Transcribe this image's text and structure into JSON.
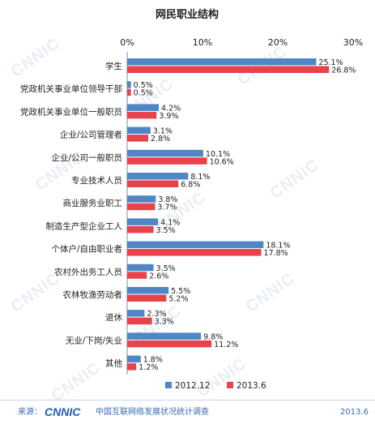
{
  "chart_data": {
    "type": "bar",
    "orientation": "horizontal",
    "title": "网民职业结构",
    "x_ticks": [
      "0%",
      "10%",
      "20%",
      "30%"
    ],
    "xlim": [
      0,
      30
    ],
    "unit": "%",
    "categories": [
      "学生",
      "党政机关事业单位领导干部",
      "党政机关事业单位一般职员",
      "企业/公司管理者",
      "企业/公司一般职员",
      "专业技术人员",
      "商业服务业职工",
      "制造生产型企业工人",
      "个体户/自由职业者",
      "农村外出务工人员",
      "农林牧渔劳动者",
      "退休",
      "无业/下岗/失业",
      "其他"
    ],
    "series": [
      {
        "name": "2012.12",
        "color": "#4f86c6",
        "values": [
          25.1,
          0.5,
          4.2,
          3.1,
          10.1,
          8.1,
          3.8,
          4.1,
          18.1,
          3.5,
          5.5,
          2.3,
          9.8,
          1.8
        ],
        "labels": [
          "25.1%",
          "0.5%",
          "4.2%",
          "3.1%",
          "10.1%",
          "8.1%",
          "3.8%",
          "4.1%",
          "18.1%",
          "3.5%",
          "5.5%",
          "2.3%",
          "9.8%",
          "1.8%"
        ]
      },
      {
        "name": "2013.6",
        "color": "#e8424a",
        "values": [
          26.8,
          0.5,
          3.9,
          2.8,
          10.6,
          6.8,
          3.7,
          3.5,
          17.8,
          2.6,
          5.2,
          3.3,
          11.2,
          1.2
        ],
        "labels": [
          "26.8%",
          "0.5%",
          "3.9%",
          "2.8%",
          "10.6%",
          "6.8%",
          "3.7%",
          "3.5%",
          "17.8%",
          "2.6%",
          "5.2%",
          "3.3%",
          "11.2%",
          "1.2%"
        ]
      }
    ],
    "legend_placement": "bottom"
  },
  "footer": {
    "source_label": "来源：",
    "logo_text": "CNNIC",
    "survey_name": "中国互联网络发展状况统计调查",
    "date": "2013.6"
  },
  "watermark_text": "CNNIC"
}
